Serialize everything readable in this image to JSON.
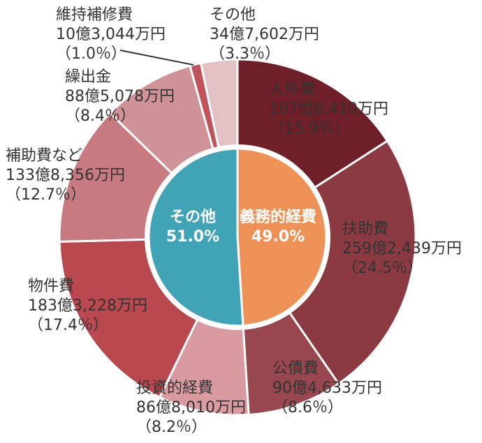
{
  "chart_data": {
    "type": "pie",
    "title": "",
    "outer": {
      "slices": [
        {
          "name": "人件費",
          "amount": "167億8,410万円",
          "percent": 15.9,
          "percent_label": "（15.9％）",
          "color": "#6e1f28"
        },
        {
          "name": "扶助費",
          "amount": "259億2,439万円",
          "percent": 24.5,
          "percent_label": "（24.5％）",
          "color": "#8a3a40"
        },
        {
          "name": "公債費",
          "amount": "90億4,633万円",
          "percent": 8.6,
          "percent_label": "（8.6％）",
          "color": "#97474d"
        },
        {
          "name": "投資的経費",
          "amount": "86億8,010万円",
          "percent": 8.2,
          "percent_label": "（8.2％）",
          "color": "#d99aa0"
        },
        {
          "name": "物件費",
          "amount": "183億3,228万円",
          "percent": 17.4,
          "percent_label": "（17.4％）",
          "color": "#b9484f"
        },
        {
          "name": "補助費など",
          "amount": "133億8,356万円",
          "percent": 12.7,
          "percent_label": "（12.7％）",
          "color": "#c77b81"
        },
        {
          "name": "繰出金",
          "amount": "88億5,078万円",
          "percent": 8.4,
          "percent_label": "（8.4％）",
          "color": "#cf9297"
        },
        {
          "name": "維持補修費",
          "amount": "10億3,044万円",
          "percent": 1.0,
          "percent_label": "（1.0％）",
          "color": "#c0545b"
        },
        {
          "name": "その他",
          "amount": "34億7,602万円",
          "percent": 3.3,
          "percent_label": "（3.3％）",
          "color": "#e3c0c3"
        }
      ]
    },
    "inner": {
      "slices": [
        {
          "name": "義務的経費",
          "percent": 49.0,
          "percent_label": "49.0%",
          "color": "#ee9156"
        },
        {
          "name": "その他",
          "percent": 51.0,
          "percent_label": "51.0%",
          "color": "#40a3b6"
        }
      ]
    }
  }
}
